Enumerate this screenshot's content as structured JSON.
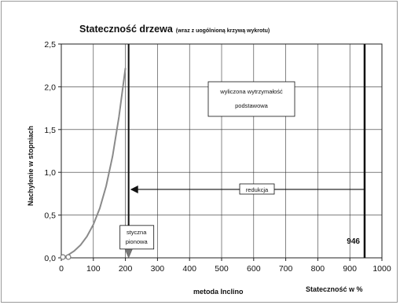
{
  "chart_data": {
    "type": "line",
    "title": "Stateczność drzewa",
    "subtitle": "(wraz z uogólnioną krzywą wykrotu)",
    "xlabel": "metoda Inclino",
    "xlabel_right": "Stateczność w %",
    "ylabel": "Nachylenie w stopniach",
    "xlim": [
      0,
      1000
    ],
    "ylim": [
      0,
      2.5
    ],
    "xticks": [
      0,
      100,
      200,
      300,
      400,
      500,
      600,
      700,
      800,
      900,
      1000
    ],
    "yticks": [
      "0,0",
      "0,5",
      "1,0",
      "1,5",
      "2,0",
      "2,5"
    ],
    "yticks_values": [
      0,
      0.5,
      1.0,
      1.5,
      2.0,
      2.5
    ],
    "grid": true,
    "series": [
      {
        "x": [
          0,
          10,
          20,
          40,
          60,
          80,
          100,
          120,
          140,
          160,
          180,
          200
        ],
        "y": [
          0.0,
          0.01,
          0.03,
          0.08,
          0.15,
          0.25,
          0.39,
          0.58,
          0.84,
          1.19,
          1.65,
          2.22
        ]
      }
    ],
    "markers": [
      {
        "x": 5,
        "y": 0.0
      },
      {
        "x": 22,
        "y": 0.0
      }
    ],
    "vertical_lines": [
      {
        "x": 210,
        "label": "styczna pionowa",
        "arrow": "down"
      },
      {
        "x": 946,
        "label": "946"
      }
    ],
    "reduction_arrow": {
      "from_x": 946,
      "to_x": 215,
      "y": 0.8,
      "label": "redukcja"
    },
    "annotation_box": {
      "text_line1": "wyliczona wytrzymałość",
      "text_line2": "podstawowa"
    },
    "colors": {
      "curve": "#8a8a8a",
      "lines": "#111111",
      "grid": "#222222"
    }
  }
}
